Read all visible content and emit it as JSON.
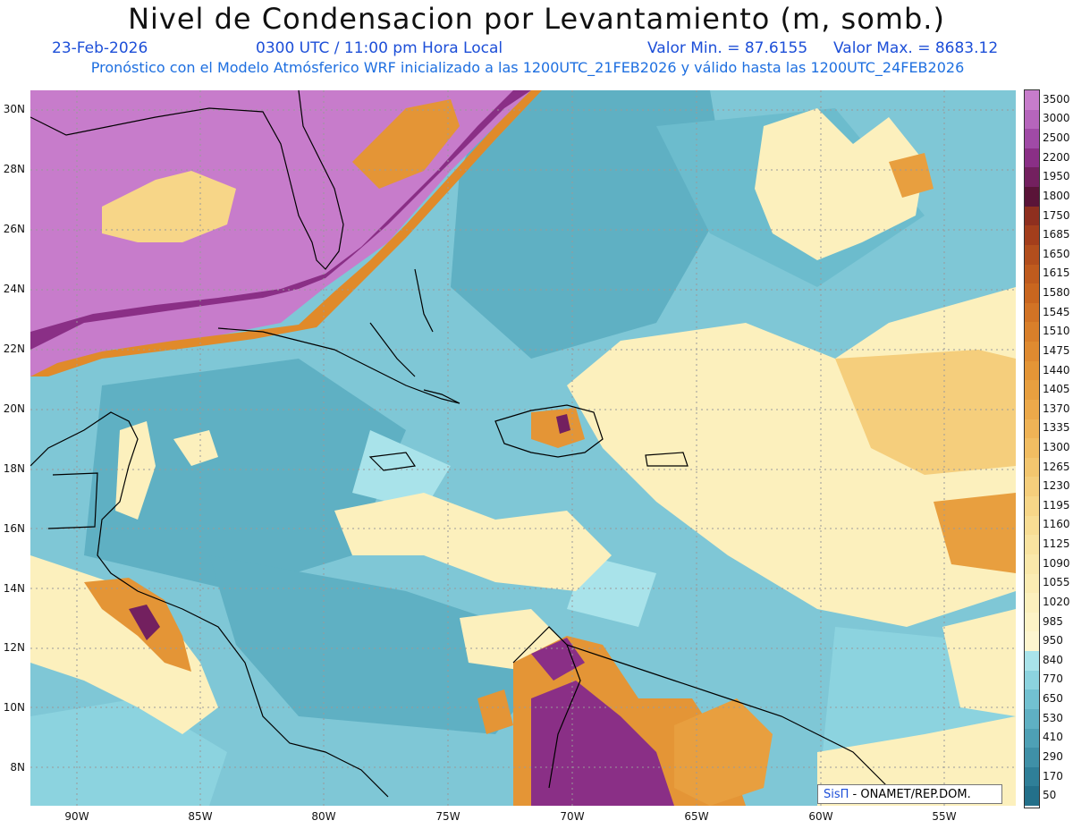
{
  "header": {
    "title": "Nivel de Condensacion por Levantamiento (m, somb.)",
    "date": "23-Feb-2026",
    "time": "0300 UTC / 11:00 pm Hora Local",
    "min_label": "Valor Min. = 87.6155",
    "max_label": "Valor Max. = 8683.12",
    "model_info": "Pronóstico con el Modelo Atmósferico WRF inicializado a las 1200UTC_21FEB2026 y válido hasta las  1200UTC_24FEB2026"
  },
  "map": {
    "lat_labels": [
      "30N",
      "28N",
      "26N",
      "24N",
      "22N",
      "20N",
      "18N",
      "16N",
      "14N",
      "12N",
      "10N",
      "8N"
    ],
    "lon_labels": [
      "90W",
      "85W",
      "80W",
      "75W",
      "70W",
      "65W",
      "60W",
      "55W"
    ],
    "grid": true
  },
  "colorbar": {
    "levels": [
      "3500",
      "3000",
      "2500",
      "2200",
      "1950",
      "1800",
      "1750",
      "1685",
      "1650",
      "1615",
      "1580",
      "1545",
      "1510",
      "1475",
      "1440",
      "1405",
      "1370",
      "1335",
      "1300",
      "1265",
      "1230",
      "1195",
      "1160",
      "1125",
      "1090",
      "1055",
      "1020",
      "985",
      "950",
      "840",
      "770",
      "650",
      "530",
      "410",
      "290",
      "170",
      "50"
    ],
    "colors": [
      "#c77ccb",
      "#b665bc",
      "#a04aa6",
      "#8a2f86",
      "#73205f",
      "#5a1438",
      "#8e2f1f",
      "#a33e1c",
      "#b24e1d",
      "#bf5b1e",
      "#c9661f",
      "#d27325",
      "#d97f2a",
      "#df8a30",
      "#e49536",
      "#e89f3f",
      "#eca94a",
      "#efb356",
      "#f1bd62",
      "#f3c66f",
      "#f5ce7c",
      "#f7d688",
      "#f8dd94",
      "#f9e3a0",
      "#fae8aa",
      "#fbecb3",
      "#fcf0bd",
      "#fdf3c6",
      "#fdf5cf",
      "#a9e3ea",
      "#8cd3df",
      "#72c1d1",
      "#5fb0c3",
      "#4ea0b5",
      "#3f90a7",
      "#2f7f98",
      "#23708a"
    ]
  },
  "credit": {
    "sis": "SisΠ",
    "org": " - ONAMET/REP.DOM."
  }
}
